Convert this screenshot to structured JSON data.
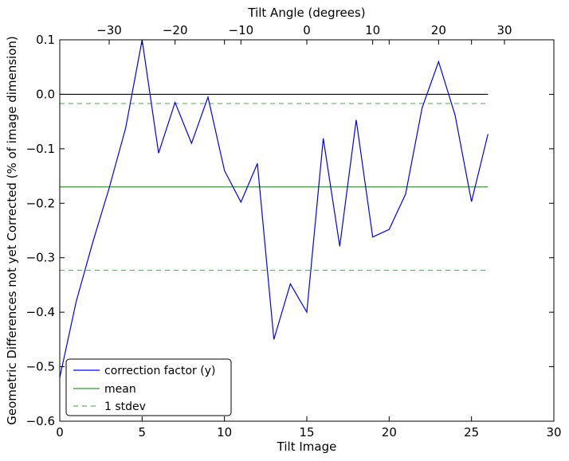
{
  "chart_data": {
    "type": "line",
    "title": "",
    "xlabel": "Tilt Image",
    "ylabel": "Geometric Differences not yet Corrected (% of image dimension)",
    "x2label": "Tilt Angle (degrees)",
    "xlim": [
      0,
      30
    ],
    "ylim": [
      -0.6,
      0.1
    ],
    "x2lim": [
      -37.5,
      37.5
    ],
    "xticks": [
      0,
      5,
      10,
      15,
      20,
      25,
      30
    ],
    "xtick_labels": [
      "0",
      "5",
      "10",
      "15",
      "20",
      "25",
      "30"
    ],
    "yticks": [
      -0.6,
      -0.5,
      -0.4,
      -0.3,
      -0.2,
      -0.1,
      0.0,
      0.1
    ],
    "ytick_labels": [
      "−0.6",
      "−0.5",
      "−0.4",
      "−0.3",
      "−0.2",
      "−0.1",
      "0.0",
      "0.1"
    ],
    "x2ticks": [
      -30,
      -20,
      -10,
      0,
      10,
      20,
      30
    ],
    "x2tick_labels": [
      "−30",
      "−20",
      "−10",
      "0",
      "10",
      "20",
      "30"
    ],
    "grid": false,
    "legend_position": "lower-left",
    "series": [
      {
        "name": "correction factor (y)",
        "style": "solid",
        "color": "#0000ff",
        "x": [
          0,
          1,
          2,
          3,
          4,
          5,
          6,
          7,
          8,
          9,
          10,
          11,
          12,
          13,
          14,
          15,
          16,
          17,
          18,
          19,
          20,
          21,
          22,
          23,
          24,
          25,
          26
        ],
        "y": [
          -0.52,
          -0.38,
          -0.272,
          -0.172,
          -0.062,
          0.1,
          -0.108,
          -0.015,
          -0.09,
          -0.005,
          -0.14,
          -0.198,
          -0.127,
          -0.45,
          -0.348,
          -0.4,
          -0.081,
          -0.279,
          -0.047,
          -0.262,
          -0.248,
          -0.183,
          -0.025,
          0.06,
          -0.038,
          -0.197,
          -0.073
        ]
      },
      {
        "name": "mean",
        "style": "solid",
        "color": "#2ca02c",
        "x": [
          0,
          26
        ],
        "y": [
          -0.17,
          -0.17
        ]
      },
      {
        "name": "1 stdev",
        "style": "dashed",
        "color": "#5cb85c",
        "x": [
          0,
          26
        ],
        "y": [
          -0.017,
          -0.017
        ],
        "y2": [
          -0.323,
          -0.323
        ]
      }
    ],
    "reference_line": {
      "y": 0.0,
      "x": [
        0,
        26
      ],
      "color": "#000000"
    }
  }
}
